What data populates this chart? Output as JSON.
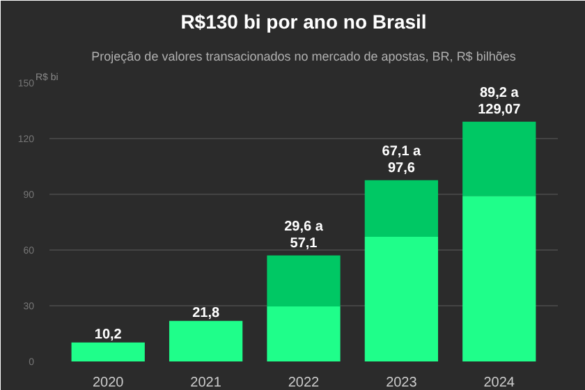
{
  "chart_data": {
    "type": "bar",
    "title": "R$130 bi por ano no Brasil",
    "subtitle": "Projeção de valores transacionados no mercado de apostas, BR, R$ bilhões",
    "ylabel": "R$ bi",
    "categories": [
      "2020",
      "2021",
      "2022",
      "2023",
      "2024"
    ],
    "stacked": true,
    "series": [
      {
        "color": "#1ffe8a",
        "values": [
          10.2,
          21.8,
          29.6,
          67.1,
          89.2
        ]
      },
      {
        "color": "#00c864",
        "values": [
          null,
          null,
          27.5,
          30.5,
          39.87
        ]
      }
    ],
    "totals": [
      "10,2",
      "21,8",
      "29,6 a\n57,1",
      "67,1 a\n97,6",
      "89,2 a\n129,07"
    ],
    "ylim": [
      0,
      150
    ],
    "yticks": [
      0,
      30,
      60,
      90,
      120,
      150
    ],
    "grid": "y"
  }
}
